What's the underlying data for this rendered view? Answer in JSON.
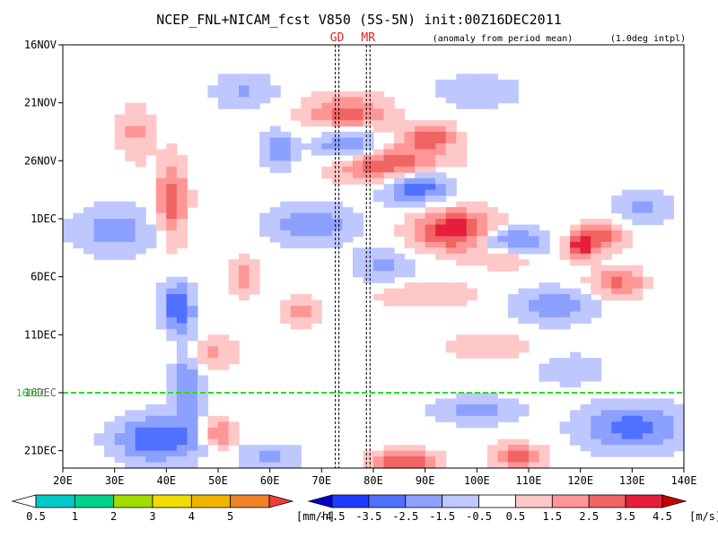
{
  "chart_data": {
    "type": "heatmap",
    "title": "NCEP_FNL+NICAM_fcst V850 (5S-5N) init:00Z16DEC2011",
    "subtitle_left": "(anomaly from period mean)",
    "subtitle_right": "(1.0deg intpl)",
    "marker_labels": [
      {
        "label": "GD",
        "lon": 73
      },
      {
        "label": "MR",
        "lon": 79
      }
    ],
    "forecast_start_label": "16DEC",
    "x_ticks": [
      {
        "label": "20E",
        "lon": 20
      },
      {
        "label": "30E",
        "lon": 30
      },
      {
        "label": "40E",
        "lon": 40
      },
      {
        "label": "50E",
        "lon": 50
      },
      {
        "label": "60E",
        "lon": 60
      },
      {
        "label": "70E",
        "lon": 70
      },
      {
        "label": "80E",
        "lon": 80
      },
      {
        "label": "90E",
        "lon": 90
      },
      {
        "label": "100E",
        "lon": 100
      },
      {
        "label": "110E",
        "lon": 110
      },
      {
        "label": "120E",
        "lon": 120
      },
      {
        "label": "130E",
        "lon": 130
      },
      {
        "label": "140E",
        "lon": 140
      }
    ],
    "y_ticks": [
      {
        "label": "16NOV",
        "day": 0
      },
      {
        "label": "21NOV",
        "day": 5
      },
      {
        "label": "26NOV",
        "day": 10
      },
      {
        "label": "1DEC",
        "day": 15
      },
      {
        "label": "6DEC",
        "day": 20
      },
      {
        "label": "11DEC",
        "day": 25
      },
      {
        "label": "16DEC",
        "day": 30
      },
      {
        "label": "21DEC",
        "day": 35
      }
    ],
    "xlim": [
      20,
      140
    ],
    "ylim_days": [
      0,
      36.5
    ],
    "forecast_start_day": 30,
    "anomaly_blobs": [
      {
        "lon": 75,
        "day": 6.0,
        "r_lon": 8,
        "r_day": 1.6,
        "v": 3.0
      },
      {
        "lon": 84,
        "day": 10.5,
        "r_lon": 10,
        "r_day": 1.6,
        "v": 4.2
      },
      {
        "lon": 91,
        "day": 8.0,
        "r_lon": 5,
        "r_day": 1.2,
        "v": 3.0
      },
      {
        "lon": 41,
        "day": 13.5,
        "r_lon": 3,
        "r_day": 3.5,
        "v": 3.2
      },
      {
        "lon": 34,
        "day": 7.5,
        "r_lon": 3,
        "r_day": 2.5,
        "v": 1.8
      },
      {
        "lon": 96,
        "day": 16.0,
        "r_lon": 8,
        "r_day": 1.8,
        "v": 4.5
      },
      {
        "lon": 105,
        "day": 18.0,
        "r_lon": 6,
        "r_day": 1.2,
        "v": 2.0
      },
      {
        "lon": 124,
        "day": 16.5,
        "r_lon": 5,
        "r_day": 1.2,
        "v": 3.0
      },
      {
        "lon": 120,
        "day": 17.5,
        "r_lon": 3,
        "r_day": 1.0,
        "v": 3.5
      },
      {
        "lon": 127,
        "day": 20.5,
        "r_lon": 5,
        "r_day": 1.2,
        "v": 3.0
      },
      {
        "lon": 55,
        "day": 20.0,
        "r_lon": 3,
        "r_day": 1.5,
        "v": 2.2
      },
      {
        "lon": 66,
        "day": 23.0,
        "r_lon": 4,
        "r_day": 1.2,
        "v": 2.0
      },
      {
        "lon": 90,
        "day": 21.5,
        "r_lon": 10,
        "r_day": 1.0,
        "v": 1.6
      },
      {
        "lon": 48,
        "day": 26.5,
        "r_lon": 6,
        "r_day": 1.5,
        "v": 1.8
      },
      {
        "lon": 102,
        "day": 26.0,
        "r_lon": 8,
        "r_day": 1.2,
        "v": 1.5
      },
      {
        "lon": 50,
        "day": 33.5,
        "r_lon": 3,
        "r_day": 1.2,
        "v": 3.0
      },
      {
        "lon": 86,
        "day": 36.0,
        "r_lon": 6,
        "r_day": 1.0,
        "v": 3.5
      },
      {
        "lon": 108,
        "day": 35.5,
        "r_lon": 5,
        "r_day": 1.0,
        "v": 3.5
      },
      {
        "lon": 88,
        "day": 12.0,
        "r_lon": 7,
        "r_day": 1.6,
        "v": -4.2
      },
      {
        "lon": 75,
        "day": 8.5,
        "r_lon": 6,
        "r_day": 1.4,
        "v": -3.0
      },
      {
        "lon": 62,
        "day": 9.0,
        "r_lon": 3,
        "r_day": 1.5,
        "v": -2.8
      },
      {
        "lon": 106,
        "day": 17.0,
        "r_lon": 7,
        "r_day": 1.2,
        "v": -3.8
      },
      {
        "lon": 68,
        "day": 15.5,
        "r_lon": 8,
        "r_day": 1.6,
        "v": -2.6
      },
      {
        "lon": 30,
        "day": 16.0,
        "r_lon": 8,
        "r_day": 2.0,
        "v": -2.2
      },
      {
        "lon": 42,
        "day": 22.5,
        "r_lon": 3,
        "r_day": 2.0,
        "v": -3.6
      },
      {
        "lon": 44,
        "day": 28.5,
        "r_lon": 3,
        "r_day": 4.0,
        "v": -2.4
      },
      {
        "lon": 82,
        "day": 19.0,
        "r_lon": 6,
        "r_day": 1.5,
        "v": -1.8
      },
      {
        "lon": 115,
        "day": 22.5,
        "r_lon": 8,
        "r_day": 1.5,
        "v": -2.2
      },
      {
        "lon": 132,
        "day": 14.0,
        "r_lon": 6,
        "r_day": 1.5,
        "v": -1.8
      },
      {
        "lon": 38,
        "day": 34.0,
        "r_lon": 8,
        "r_day": 2.0,
        "v": -3.5
      },
      {
        "lon": 130,
        "day": 33.0,
        "r_lon": 10,
        "r_day": 2.0,
        "v": -3.0
      },
      {
        "lon": 100,
        "day": 31.5,
        "r_lon": 8,
        "r_day": 1.2,
        "v": -2.0
      },
      {
        "lon": 60,
        "day": 35.5,
        "r_lon": 6,
        "r_day": 1.0,
        "v": -2.0
      },
      {
        "lon": 118,
        "day": 28.0,
        "r_lon": 6,
        "r_day": 1.2,
        "v": -1.6
      },
      {
        "lon": 55,
        "day": 4.0,
        "r_lon": 6,
        "r_day": 1.5,
        "v": -1.6
      },
      {
        "lon": 100,
        "day": 4.0,
        "r_lon": 8,
        "r_day": 1.5,
        "v": -1.4
      }
    ],
    "precip_colorbar": {
      "unit": "[mm/h]",
      "levels": [
        "0.5",
        "1",
        "2",
        "3",
        "4",
        "5"
      ],
      "colors": [
        "#ffffff",
        "#00c8c8",
        "#00d28c",
        "#a0dc00",
        "#f0dc00",
        "#f0b400",
        "#f08228",
        "#f03c3c"
      ]
    },
    "wind_colorbar": {
      "unit": "[m/s]",
      "levels": [
        "-4.5",
        "-3.5",
        "-2.5",
        "-1.5",
        "-0.5",
        "0.5",
        "1.5",
        "2.5",
        "3.5",
        "4.5"
      ],
      "colors": [
        "#0000c8",
        "#1e3cff",
        "#5070ff",
        "#8ca0ff",
        "#bec8ff",
        "#ffffff",
        "#ffc8c8",
        "#ff9696",
        "#f06464",
        "#e61e3c",
        "#c80000"
      ]
    }
  }
}
